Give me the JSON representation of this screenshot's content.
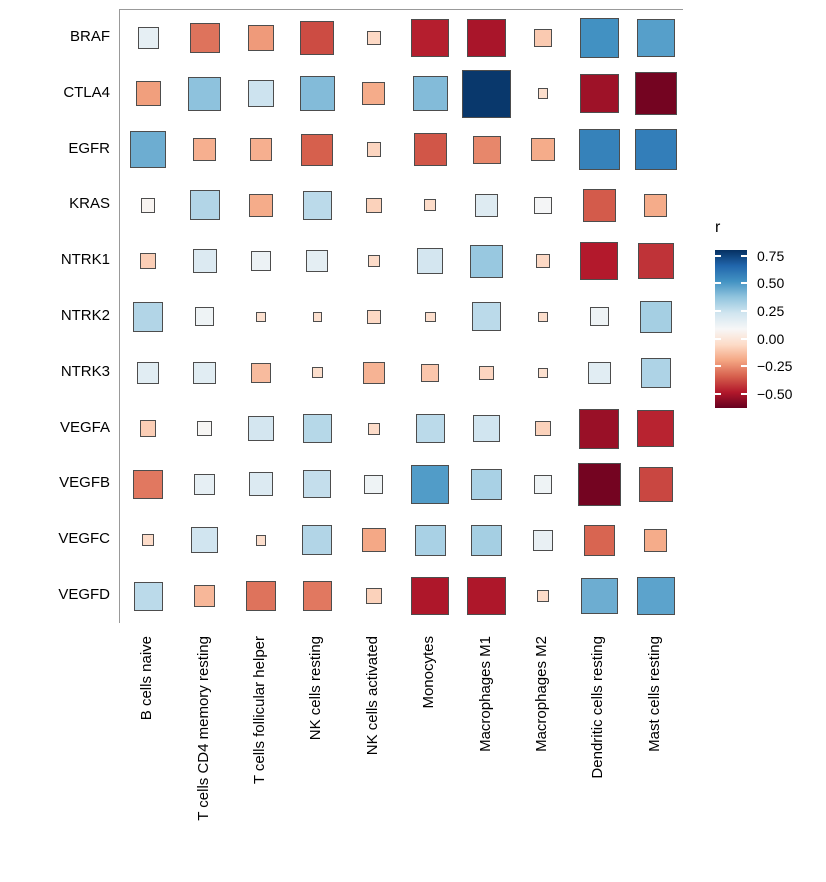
{
  "chart_data": {
    "type": "heatmap",
    "subtype": "corrplot-square",
    "legend_title": "r",
    "rows": [
      "BRAF",
      "CTLA4",
      "EGFR",
      "KRAS",
      "NTRK1",
      "NTRK2",
      "NTRK3",
      "VEGFA",
      "VEGFB",
      "VEGFC",
      "VEGFD"
    ],
    "columns": [
      "B cells naive",
      "T cells CD4 memory resting",
      "T cells follicular helper",
      "NK cells resting",
      "NK cells activated",
      "Monocytes",
      "Macrophages M1",
      "Macrophages M2",
      "Dendritic cells resting",
      "Mast cells resting"
    ],
    "values": [
      [
        0.15,
        -0.3,
        -0.22,
        -0.38,
        -0.06,
        -0.47,
        -0.5,
        -0.1,
        0.52,
        0.48
      ],
      [
        -0.21,
        0.38,
        0.24,
        0.4,
        -0.18,
        0.4,
        0.78,
        -0.04,
        -0.52,
        -0.6
      ],
      [
        0.44,
        -0.17,
        -0.17,
        -0.34,
        -0.07,
        -0.36,
        -0.26,
        -0.18,
        0.57,
        0.58
      ],
      [
        0.07,
        0.3,
        -0.18,
        0.28,
        -0.08,
        -0.05,
        0.18,
        0.1,
        -0.35,
        -0.18
      ],
      [
        -0.09,
        0.19,
        0.13,
        0.16,
        -0.05,
        0.22,
        0.36,
        -0.06,
        -0.48,
        -0.43
      ],
      [
        0.3,
        0.12,
        -0.03,
        -0.03,
        -0.06,
        -0.04,
        0.28,
        -0.04,
        0.12,
        0.33
      ],
      [
        0.17,
        0.17,
        -0.14,
        -0.04,
        -0.16,
        -0.11,
        -0.07,
        -0.03,
        0.17,
        0.31
      ],
      [
        -0.09,
        0.08,
        0.22,
        0.29,
        -0.05,
        0.28,
        0.23,
        -0.08,
        -0.53,
        -0.46
      ],
      [
        -0.29,
        0.15,
        0.19,
        0.26,
        0.12,
        0.49,
        0.32,
        0.12,
        -0.6,
        -0.39
      ],
      [
        -0.05,
        0.23,
        -0.04,
        0.3,
        -0.19,
        0.32,
        0.33,
        0.14,
        -0.33,
        -0.18
      ],
      [
        0.28,
        -0.15,
        -0.3,
        -0.29,
        -0.08,
        -0.49,
        -0.49,
        -0.05,
        0.44,
        0.47
      ]
    ],
    "size_rule": "square side proportional to sqrt(|r|)",
    "grid_on": true,
    "legend_position": "right",
    "legend_ticks": [
      {
        "label": "0.75",
        "value": 0.75
      },
      {
        "label": "0.50",
        "value": 0.5
      },
      {
        "label": "0.25",
        "value": 0.25
      },
      {
        "label": "0.00",
        "value": 0.0
      },
      {
        "label": "−0.25",
        "value": -0.25
      },
      {
        "label": "−0.50",
        "value": -0.5
      }
    ],
    "color_scale": {
      "min": -0.625,
      "max": 0.8,
      "palette_low_to_high": [
        "#67001F",
        "#B2182B",
        "#D6604D",
        "#F4A582",
        "#FDDBC7",
        "#F7F7F7",
        "#D1E5F0",
        "#92C5DE",
        "#4393C3",
        "#2166AC",
        "#053061"
      ]
    },
    "colors": {
      "grid_line": "#999999",
      "square_border": "#4d4d4d",
      "background": "#ffffff",
      "label_text": "#000000"
    }
  }
}
